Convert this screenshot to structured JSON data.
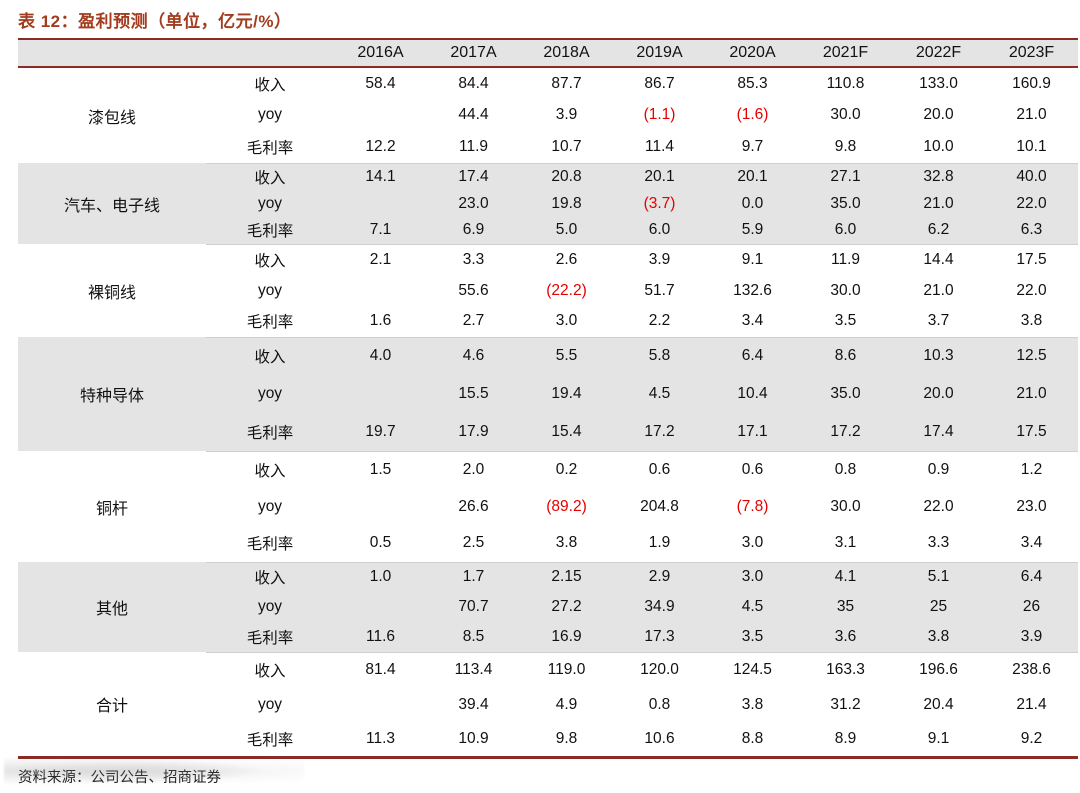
{
  "title": "表 12：盈利预测（单位，亿元/%）",
  "table": {
    "years": [
      "2016A",
      "2017A",
      "2018A",
      "2019A",
      "2020A",
      "2021F",
      "2022F",
      "2023F"
    ],
    "groups": [
      {
        "name": "漆包线",
        "rows": [
          {
            "label": "收入",
            "values": [
              "58.4",
              "84.4",
              "87.7",
              "86.7",
              "85.3",
              "110.8",
              "133.0",
              "160.9"
            ]
          },
          {
            "label": "yoy",
            "values": [
              "",
              "44.4",
              "3.9",
              "(1.1)",
              "(1.6)",
              "30.0",
              "20.0",
              "21.0"
            ]
          },
          {
            "label": "毛利率",
            "values": [
              "12.2",
              "11.9",
              "10.7",
              "11.4",
              "9.7",
              "9.8",
              "10.0",
              "10.1"
            ]
          }
        ]
      },
      {
        "name": "汽车、电子线",
        "rows": [
          {
            "label": "收入",
            "values": [
              "14.1",
              "17.4",
              "20.8",
              "20.1",
              "20.1",
              "27.1",
              "32.8",
              "40.0"
            ]
          },
          {
            "label": "yoy",
            "values": [
              "",
              "23.0",
              "19.8",
              "(3.7)",
              "0.0",
              "35.0",
              "21.0",
              "22.0"
            ]
          },
          {
            "label": "毛利率",
            "values": [
              "7.1",
              "6.9",
              "5.0",
              "6.0",
              "5.9",
              "6.0",
              "6.2",
              "6.3"
            ]
          }
        ]
      },
      {
        "name": "裸铜线",
        "rows": [
          {
            "label": "收入",
            "values": [
              "2.1",
              "3.3",
              "2.6",
              "3.9",
              "9.1",
              "11.9",
              "14.4",
              "17.5"
            ]
          },
          {
            "label": "yoy",
            "values": [
              "",
              "55.6",
              "(22.2)",
              "51.7",
              "132.6",
              "30.0",
              "21.0",
              "22.0"
            ]
          },
          {
            "label": "毛利率",
            "values": [
              "1.6",
              "2.7",
              "3.0",
              "2.2",
              "3.4",
              "3.5",
              "3.7",
              "3.8"
            ]
          }
        ]
      },
      {
        "name": "特种导体",
        "rows": [
          {
            "label": "收入",
            "values": [
              "4.0",
              "4.6",
              "5.5",
              "5.8",
              "6.4",
              "8.6",
              "10.3",
              "12.5"
            ]
          },
          {
            "label": "yoy",
            "values": [
              "",
              "15.5",
              "19.4",
              "4.5",
              "10.4",
              "35.0",
              "20.0",
              "21.0"
            ]
          },
          {
            "label": "毛利率",
            "values": [
              "19.7",
              "17.9",
              "15.4",
              "17.2",
              "17.1",
              "17.2",
              "17.4",
              "17.5"
            ]
          }
        ]
      },
      {
        "name": "铜杆",
        "rows": [
          {
            "label": "收入",
            "values": [
              "1.5",
              "2.0",
              "0.2",
              "0.6",
              "0.6",
              "0.8",
              "0.9",
              "1.2"
            ]
          },
          {
            "label": "yoy",
            "values": [
              "",
              "26.6",
              "(89.2)",
              "204.8",
              "(7.8)",
              "30.0",
              "22.0",
              "23.0"
            ]
          },
          {
            "label": "毛利率",
            "values": [
              "0.5",
              "2.5",
              "3.8",
              "1.9",
              "3.0",
              "3.1",
              "3.3",
              "3.4"
            ]
          }
        ]
      },
      {
        "name": "其他",
        "rows": [
          {
            "label": "收入",
            "values": [
              "1.0",
              "1.7",
              "2.15",
              "2.9",
              "3.0",
              "4.1",
              "5.1",
              "6.4"
            ]
          },
          {
            "label": "yoy",
            "values": [
              "",
              "70.7",
              "27.2",
              "34.9",
              "4.5",
              "35",
              "25",
              "26"
            ]
          },
          {
            "label": "毛利率",
            "values": [
              "11.6",
              "8.5",
              "16.9",
              "17.3",
              "3.5",
              "3.6",
              "3.8",
              "3.9"
            ]
          }
        ]
      },
      {
        "name": "合计",
        "rows": [
          {
            "label": "收入",
            "values": [
              "81.4",
              "113.4",
              "119.0",
              "120.0",
              "124.5",
              "163.3",
              "196.6",
              "238.6"
            ]
          },
          {
            "label": "yoy",
            "values": [
              "",
              "39.4",
              "4.9",
              "0.8",
              "3.8",
              "31.2",
              "20.4",
              "21.4"
            ]
          },
          {
            "label": "毛利率",
            "values": [
              "11.3",
              "10.9",
              "9.8",
              "10.6",
              "8.8",
              "8.9",
              "9.1",
              "9.2"
            ]
          }
        ]
      }
    ],
    "negative_color": "#E60000",
    "accent_color": "#8B2B26",
    "band_color": "#E4E4E4"
  },
  "footer": {
    "source": "资料来源：公司公告、招商证券"
  }
}
